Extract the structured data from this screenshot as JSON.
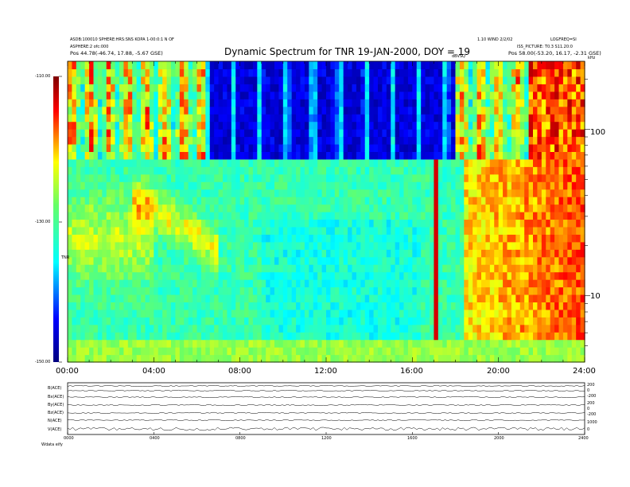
{
  "header": {
    "title": "Dynamic Spectrum for TNR 19-JAN-2000, DOY = 19",
    "left_line1": "ASDB:100010 SPHERE:HRS:SNS KOPA 1-00:0:1 N OF",
    "left_line2": "ASPHERE:2 ofc:000",
    "left_line3": "Pos  44.78(-46.74, 17.88, -5.67 GSE)",
    "right_top_center": "1.10 WIND 2/2/02",
    "right_top_right": "LOGFREQ=SI",
    "right_line2": "ISS_PICTURE: T0.3 S11.20:0",
    "right_line3": "Pos  58.00(-53.20, 16.17, -2.31 GSE)",
    "small_mark": "dBVSQ"
  },
  "colorbar": {
    "tick_labels": [
      "-110.00",
      "-130.00",
      "-150.00"
    ],
    "unit": "TNR",
    "colors": [
      "#00007f",
      "#0000ff",
      "#00ffff",
      "#ffff00",
      "#ff0000",
      "#7f0000"
    ]
  },
  "chart_data": {
    "type": "heatmap",
    "title": "Dynamic Spectrum for TNR 19-JAN-2000, DOY = 19",
    "x_tick_labels": [
      "00:00",
      "04:00",
      "08:00",
      "12:00",
      "16:00",
      "20:00",
      "24:00"
    ],
    "xlim_hours": [
      0,
      24
    ],
    "y_unit": "kHz",
    "y_scale": "log",
    "y_tick_labels": [
      "100",
      "10"
    ],
    "ylim_khz": [
      4,
      256
    ],
    "colorbar_range_dbv": [
      -150,
      -110
    ],
    "noise_level_db": -150,
    "features": [
      {
        "label": "dark quiet band",
        "start_hour": 6.3,
        "end_hour": 18.1,
        "freq_min_khz": 65,
        "freq_max_khz": 256,
        "level_db": -150
      },
      {
        "label": "intense emission",
        "start_hour": 21.5,
        "end_hour": 24,
        "freq_min_khz": 12,
        "freq_max_khz": 256,
        "level_db": -113
      },
      {
        "label": "burst",
        "start_hour": 17.0,
        "end_hour": 17.3,
        "freq_min_khz": 4,
        "freq_max_khz": 40,
        "level_db": -112
      }
    ]
  },
  "bottom_panel": {
    "row_labels": [
      "B(ACE)",
      "Bx(ACE)",
      "By(ACE)",
      "Bz(ACE)",
      "N(ACE)",
      "V(ACE)"
    ],
    "right_scale_labels": [
      "200",
      "0",
      "-200",
      "200",
      "0",
      "-200",
      "1000",
      "0"
    ],
    "time_tick_labels": [
      "0000",
      "0400",
      "0800",
      "1200",
      "1600",
      "2000",
      "2400"
    ],
    "footer_label": "Wdata  eify"
  }
}
